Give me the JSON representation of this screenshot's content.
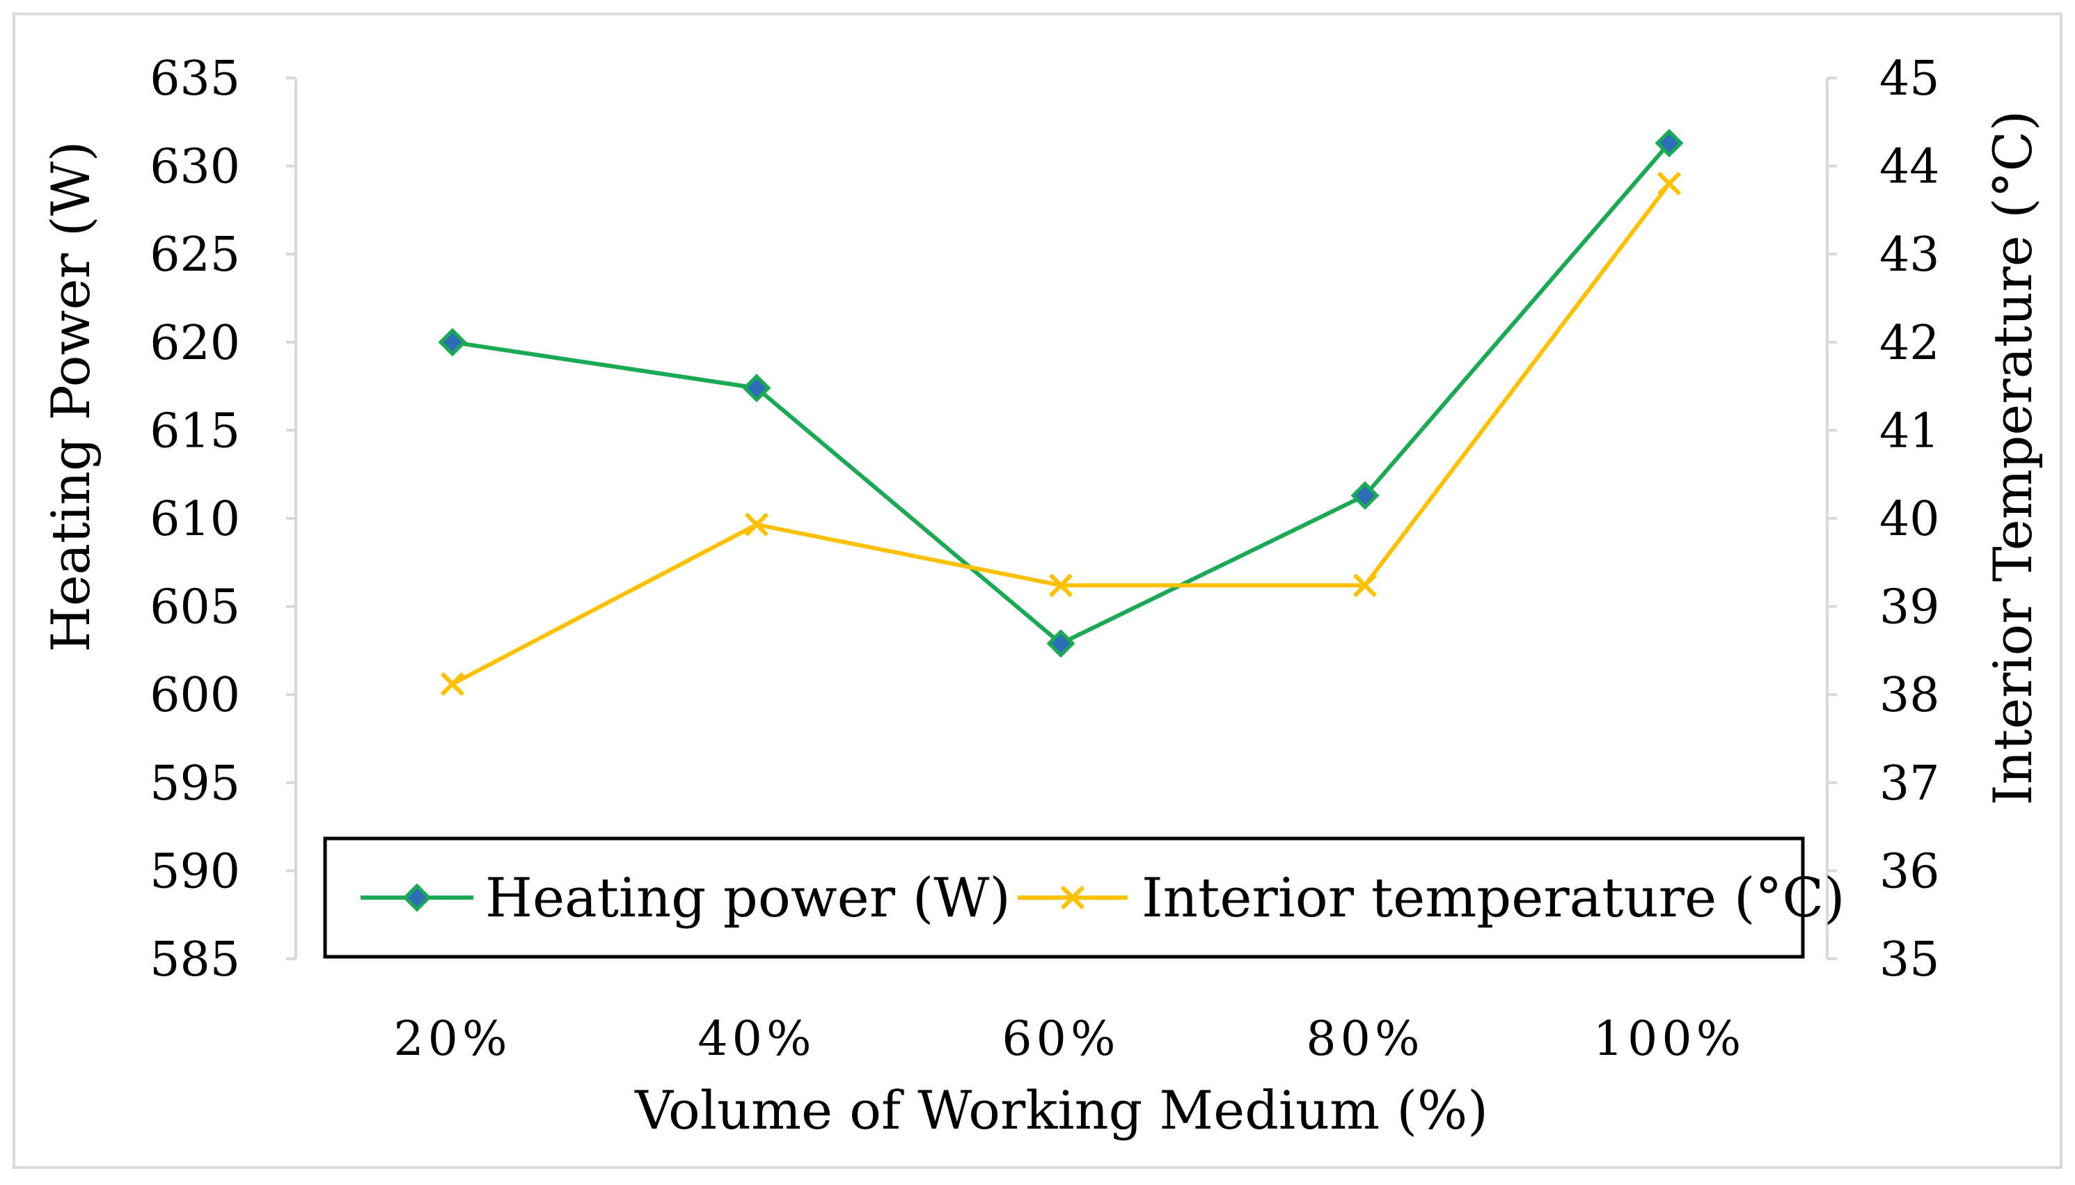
{
  "chart_data": {
    "type": "line",
    "title": "",
    "xlabel": "Volume of Working Medium (%)",
    "ylabel": "Heating Power (W)",
    "y2label": "Interior Temperature (°C)",
    "categories": [
      "20%",
      "40%",
      "60%",
      "80%",
      "100%"
    ],
    "ylim": [
      585,
      635
    ],
    "y_ticks": [
      "635",
      "630",
      "625",
      "620",
      "615",
      "610",
      "605",
      "600",
      "595",
      "590",
      "585"
    ],
    "y2lim": [
      35,
      45
    ],
    "y2_ticks": [
      "45",
      "44",
      "43",
      "42",
      "41",
      "40",
      "39",
      "38",
      "37",
      "36",
      "35"
    ],
    "series": [
      {
        "name": "Heating power (W)",
        "axis": "left",
        "marker": "diamond",
        "color": "#1aaa55",
        "marker_color": "#2e6eb8",
        "values": [
          620.0,
          617.4,
          602.9,
          611.3,
          631.3
        ]
      },
      {
        "name": "Interior temperature (°C)",
        "axis": "right",
        "marker": "x",
        "color": "#ffc000",
        "values": [
          38.12,
          39.93,
          39.24,
          39.24,
          43.8
        ]
      }
    ],
    "legend": {
      "position": "bottom-inside",
      "entries": [
        "Heating power (W)",
        "Interior temperature (°C)"
      ]
    },
    "grid": false
  }
}
